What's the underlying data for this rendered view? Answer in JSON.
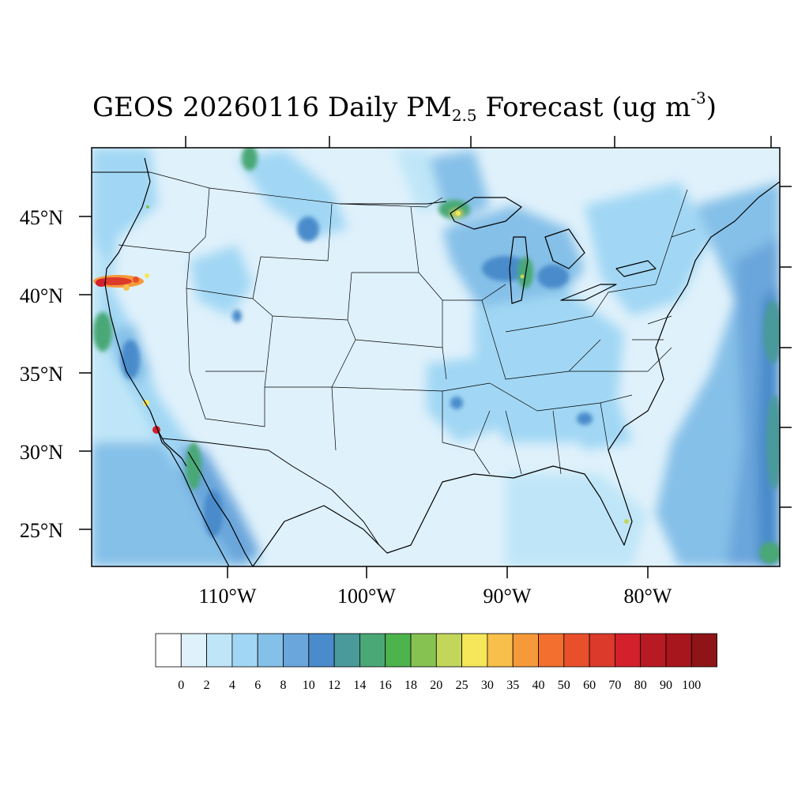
{
  "title": {
    "prefix": "GEOS 20260116 Daily PM",
    "subscript": "2.5",
    "middle": " Forecast (ug m",
    "superscript": "-3",
    "suffix": ")"
  },
  "map": {
    "lat_labels": [
      "45°N",
      "40°N",
      "35°N",
      "30°N",
      "25°N"
    ],
    "lon_labels": [
      "110°W",
      "100°W",
      "90°W",
      "80°W"
    ],
    "background_color": "#dff1fb"
  },
  "colorbar": {
    "labels": [
      "0",
      "2",
      "4",
      "6",
      "8",
      "10",
      "12",
      "14",
      "16",
      "18",
      "20",
      "25",
      "30",
      "35",
      "40",
      "50",
      "60",
      "70",
      "80",
      "90",
      "100"
    ],
    "colors": [
      "#ffffff",
      "#dff1fb",
      "#bfe6f8",
      "#a1d7f4",
      "#85c0e8",
      "#6aa6db",
      "#4a8bcb",
      "#4a9a9b",
      "#4aa876",
      "#4db34c",
      "#86c252",
      "#c2d65a",
      "#f6e65a",
      "#f8bf4a",
      "#f6993a",
      "#f26f2f",
      "#e8502b",
      "#dc3a2a",
      "#d3202b",
      "#b81a24",
      "#a8161d",
      "#8e1418"
    ]
  }
}
